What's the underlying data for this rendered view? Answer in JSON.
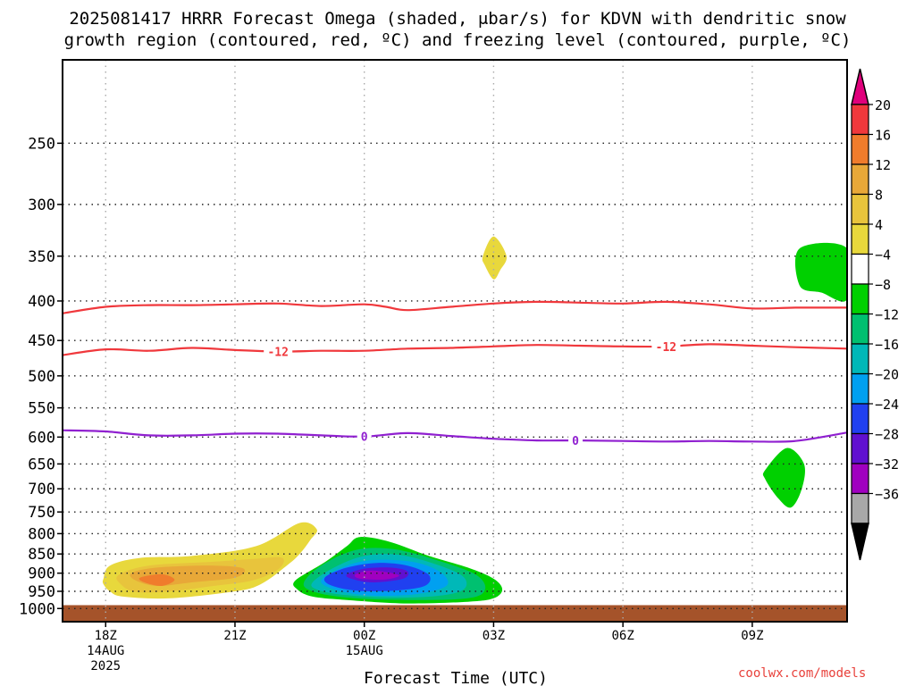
{
  "title_line1": "2025081417 HRRR Forecast Omega (shaded, μbar/s) for KDVN with dendritic snow",
  "title_line2": "growth region (contoured, red, ºC) and freezing level (contoured, purple, ºC)",
  "credit": "coolwx.com/models",
  "chart_data": {
    "type": "heatmap",
    "xlabel": "Forecast Time (UTC)",
    "ylabel": "",
    "xlim": [
      -1.0,
      17.2
    ],
    "x_ticks": [
      {
        "x": 0,
        "label": "18Z",
        "sub": [
          "14AUG",
          "2025"
        ]
      },
      {
        "x": 3,
        "label": "21Z",
        "sub": []
      },
      {
        "x": 6,
        "label": "00Z",
        "sub": [
          "15AUG"
        ]
      },
      {
        "x": 9,
        "label": "03Z",
        "sub": []
      },
      {
        "x": 12,
        "label": "06Z",
        "sub": []
      },
      {
        "x": 15,
        "label": "09Z",
        "sub": []
      }
    ],
    "y_scale": "log-pressure",
    "ylim_hPa": [
      1040,
      195
    ],
    "y_ticks": [
      "250",
      "300",
      "350",
      "400",
      "450",
      "500",
      "550",
      "600",
      "650",
      "700",
      "750",
      "800",
      "850",
      "900",
      "950",
      "1000"
    ],
    "grid": true,
    "colorbar": {
      "labels": [
        "20",
        "16",
        "12",
        "8",
        "4",
        "-4",
        "-8",
        "-12",
        "-16",
        "-20",
        "-24",
        "-28",
        "-32",
        "-36"
      ],
      "bands": [
        "#f0383c",
        "#f07c2c",
        "#e8a838",
        "#e8c43c",
        "#e8d83c",
        "#ffffff",
        "#00d000",
        "#00c070",
        "#00b8b8",
        "#00a0f0",
        "#2040f0",
        "#6010d0",
        "#a000c0",
        "#a8a8a8"
      ],
      "top_arrow": "#e0007c",
      "bottom_arrow": "#000000"
    },
    "contours": [
      {
        "label": "-12",
        "color": "#f0383c",
        "label_x": [
          4.0,
          13.0
        ],
        "x": [
          -1.0,
          0,
          1,
          2,
          3,
          4,
          5,
          6,
          7,
          8,
          9,
          10,
          11,
          12,
          13,
          14,
          15,
          16,
          17.2
        ],
        "p": [
          470,
          462,
          464,
          460,
          463,
          465,
          464,
          464,
          461,
          460,
          458,
          456,
          457,
          458,
          458,
          455,
          457,
          459,
          461
        ]
      },
      {
        "label": "",
        "color": "#f0383c",
        "label_x": [],
        "x": [
          -1.0,
          0,
          1,
          2,
          3,
          4,
          5,
          6,
          6.5,
          7,
          8,
          9,
          10,
          11,
          12,
          13,
          14,
          15,
          16,
          17.2
        ],
        "p": [
          415,
          407,
          405,
          405,
          404,
          403,
          406,
          404,
          407,
          411,
          407,
          403,
          401,
          402,
          403,
          401,
          404,
          409,
          408,
          408
        ]
      },
      {
        "label": "0",
        "color": "#9020d0",
        "label_x": [
          6.0,
          10.9
        ],
        "x": [
          -1.0,
          0,
          1,
          2,
          3,
          4,
          5,
          6,
          7,
          8,
          9,
          10,
          11,
          12,
          13,
          14,
          15,
          16,
          17.2
        ],
        "p": [
          588,
          590,
          597,
          597,
          594,
          594,
          597,
          599,
          593,
          598,
          603,
          606,
          606,
          607,
          608,
          607,
          608,
          607,
          592
        ]
      }
    ],
    "omega_areas": [
      {
        "value": 4,
        "color": "#e8d83c",
        "x": [
          -0.05,
          0.1,
          0.8,
          2.0,
          3.5,
          4.5,
          4.9,
          4.75,
          4.5,
          4.2,
          3.6,
          3.0,
          1.5,
          0.4,
          0.1,
          -0.05
        ],
        "p": [
          915,
          880,
          860,
          855,
          830,
          775,
          790,
          815,
          850,
          880,
          930,
          950,
          970,
          965,
          950,
          930
        ]
      },
      {
        "value": 8,
        "color": "#e8c43c",
        "x": [
          0.3,
          1.0,
          2.5,
          3.5,
          4.1,
          4.0,
          3.4,
          2.5,
          1.5,
          0.7,
          0.35
        ],
        "p": [
          905,
          880,
          870,
          862,
          860,
          890,
          920,
          935,
          950,
          952,
          930
        ]
      },
      {
        "value": 12,
        "color": "#e8a838",
        "x": [
          0.6,
          1.2,
          2.5,
          3.2,
          3.0,
          2.0,
          1.2,
          0.7
        ],
        "p": [
          900,
          885,
          880,
          888,
          912,
          925,
          935,
          920
        ]
      },
      {
        "value": 16,
        "color": "#f07c2c",
        "x": [
          0.8,
          1.3,
          1.6,
          1.3,
          0.9
        ],
        "p": [
          912,
          903,
          918,
          935,
          925
        ]
      },
      {
        "value": -4,
        "color": "#00d000",
        "x": [
          4.4,
          5.1,
          5.6,
          5.9,
          6.6,
          7.5,
          8.4,
          9.0,
          9.2,
          9.0,
          8.4,
          7.0,
          5.6,
          4.8,
          4.45
        ],
        "p": [
          920,
          870,
          830,
          808,
          820,
          855,
          885,
          915,
          945,
          970,
          980,
          985,
          975,
          965,
          945
        ]
      },
      {
        "value": -8,
        "color": "#00c070",
        "x": [
          4.6,
          5.0,
          5.8,
          6.7,
          7.8,
          8.6,
          8.8,
          8.4,
          7.0,
          5.6,
          4.8
        ],
        "p": [
          925,
          880,
          840,
          838,
          870,
          905,
          945,
          970,
          975,
          968,
          950
        ]
      },
      {
        "value": -12,
        "color": "#00b8b8",
        "x": [
          4.8,
          5.3,
          6.0,
          6.8,
          7.7,
          8.3,
          8.3,
          7.7,
          6.6,
          5.5,
          4.9
        ],
        "p": [
          925,
          885,
          855,
          852,
          878,
          910,
          945,
          963,
          968,
          960,
          945
        ]
      },
      {
        "value": -16,
        "color": "#00a0f0",
        "x": [
          5.0,
          5.6,
          6.3,
          7.2,
          7.8,
          7.9,
          7.2,
          6.2,
          5.4
        ],
        "p": [
          920,
          880,
          865,
          872,
          900,
          935,
          958,
          962,
          948
        ]
      },
      {
        "value": -20,
        "color": "#2040f0",
        "x": [
          5.1,
          5.6,
          6.3,
          7.0,
          7.5,
          7.4,
          6.7,
          5.8,
          5.2
        ],
        "p": [
          910,
          885,
          873,
          880,
          905,
          935,
          948,
          948,
          932
        ]
      },
      {
        "value": -24,
        "color": "#6010d0",
        "x": [
          5.6,
          6.0,
          6.6,
          7.0,
          6.9,
          6.2,
          5.7
        ],
        "p": [
          903,
          888,
          885,
          895,
          915,
          925,
          915
        ]
      },
      {
        "value": -28,
        "color": "#a000c0",
        "x": [
          5.8,
          6.2,
          6.8,
          6.5,
          5.9
        ],
        "p": [
          903,
          893,
          905,
          917,
          915
        ]
      },
      {
        "value": 4,
        "color": "#e8d83c",
        "x": [
          8.75,
          9.0,
          9.3,
          9.15,
          9.0,
          8.8
        ],
        "p": [
          350,
          330,
          350,
          365,
          375,
          360
        ]
      },
      {
        "value": -4,
        "color": "#00d000",
        "x": [
          16.1,
          17.2,
          17.2,
          16.6,
          16.1
        ],
        "p": [
          342,
          342,
          398,
          390,
          382
        ]
      },
      {
        "value": -4,
        "color": "#00d000",
        "x": [
          15.3,
          15.8,
          16.2,
          16.15,
          15.9,
          15.6,
          15.3
        ],
        "p": [
          662,
          620,
          650,
          700,
          740,
          720,
          680
        ]
      }
    ],
    "ground": {
      "label": "",
      "color": "#a5532a",
      "p_top": 990
    }
  }
}
